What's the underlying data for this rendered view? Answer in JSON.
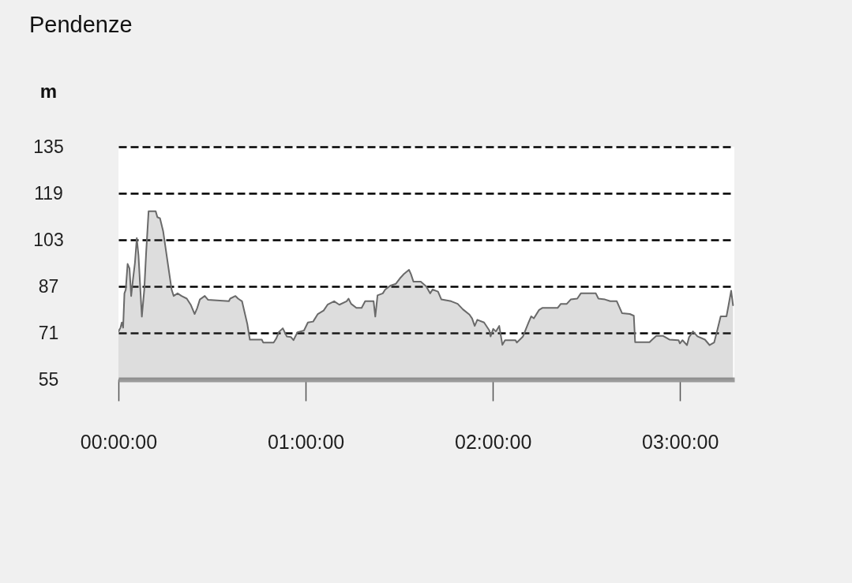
{
  "chart_data": {
    "type": "area",
    "title": "Pendenze",
    "ylabel": "m",
    "color": "#6a6a6a",
    "x": [
      0,
      0.011,
      0.018,
      0.025,
      0.032,
      0.039,
      0.049,
      0.059,
      0.068,
      0.078,
      0.088,
      0.098,
      0.107,
      0.125,
      0.138,
      0.148,
      0.161,
      0.199,
      0.208,
      0.222,
      0.239,
      0.278,
      0.284,
      0.295,
      0.316,
      0.337,
      0.365,
      0.386,
      0.407,
      0.421,
      0.435,
      0.461,
      0.478,
      0.59,
      0.597,
      0.625,
      0.639,
      0.66,
      0.688,
      0.702,
      0.766,
      0.773,
      0.829,
      0.843,
      0.857,
      0.878,
      0.899,
      0.921,
      0.935,
      0.956,
      0.991,
      1.012,
      1.04,
      1.065,
      1.096,
      1.117,
      1.152,
      1.18,
      1.219,
      1.229,
      1.243,
      1.271,
      1.299,
      1.318,
      1.363,
      1.372,
      1.384,
      1.412,
      1.425,
      1.454,
      1.482,
      1.503,
      1.524,
      1.552,
      1.562,
      1.576,
      1.615,
      1.644,
      1.665,
      1.678,
      1.707,
      1.725,
      1.777,
      1.812,
      1.84,
      1.875,
      1.889,
      1.903,
      1.917,
      1.953,
      1.981,
      1.988,
      2.002,
      2.016,
      2.034,
      2.051,
      2.065,
      2.121,
      2.128,
      2.16,
      2.191,
      2.205,
      2.219,
      2.247,
      2.264,
      2.346,
      2.363,
      2.395,
      2.416,
      2.451,
      2.47,
      2.55,
      2.564,
      2.599,
      2.627,
      2.662,
      2.69,
      2.732,
      2.753,
      2.76,
      2.837,
      2.851,
      2.873,
      2.908,
      2.943,
      2.992,
      2.999,
      3.013,
      3.037,
      3.048,
      3.069,
      3.093,
      3.133,
      3.158,
      3.182,
      3.2,
      3.217,
      3.248,
      3.259,
      3.273,
      3.283
    ],
    "values": [
      71.5,
      72.8,
      74.6,
      72.8,
      84.6,
      85.9,
      94.7,
      93.2,
      83.7,
      89.6,
      95.0,
      103.6,
      97.7,
      76.6,
      85.9,
      98.6,
      112.8,
      112.8,
      110.8,
      110.4,
      105.9,
      88.6,
      85.9,
      83.7,
      84.6,
      83.7,
      82.8,
      80.7,
      77.5,
      79.6,
      82.5,
      83.7,
      82.4,
      81.9,
      82.8,
      83.7,
      82.8,
      81.9,
      74.2,
      68.7,
      68.7,
      67.7,
      67.7,
      69.1,
      71.3,
      72.6,
      69.8,
      69.6,
      68.5,
      71.2,
      71.8,
      74.6,
      74.9,
      77.5,
      78.7,
      80.7,
      81.9,
      80.7,
      81.9,
      82.8,
      81.0,
      79.6,
      79.6,
      81.9,
      81.9,
      76.6,
      83.9,
      84.6,
      85.9,
      87.3,
      87.9,
      89.7,
      91.2,
      92.7,
      91.3,
      88.6,
      88.6,
      87.0,
      84.6,
      85.9,
      85.2,
      82.5,
      81.9,
      81.0,
      79.1,
      77.3,
      76.0,
      73.4,
      75.5,
      74.6,
      71.9,
      69.8,
      72.4,
      71.5,
      73.4,
      66.9,
      68.5,
      68.5,
      67.7,
      69.7,
      74.6,
      76.7,
      76.0,
      78.9,
      79.6,
      79.6,
      81.0,
      81.0,
      82.5,
      82.8,
      84.6,
      84.6,
      82.8,
      82.5,
      81.9,
      81.9,
      77.8,
      77.5,
      76.9,
      67.8,
      67.8,
      68.7,
      70.0,
      70.0,
      68.7,
      68.5,
      67.4,
      68.5,
      66.8,
      69.5,
      71.5,
      69.8,
      68.7,
      66.8,
      67.7,
      72.2,
      76.7,
      76.7,
      80.5,
      85.5,
      80.5
    ],
    "xlim": [
      0,
      3.29
    ],
    "xticks": [
      {
        "value": 0,
        "label": "00:00:00"
      },
      {
        "value": 1,
        "label": "01:00:00"
      },
      {
        "value": 2,
        "label": "02:00:00"
      },
      {
        "value": 3,
        "label": "03:00:00"
      }
    ],
    "ylim": [
      55,
      135
    ],
    "yticks": [
      55,
      71,
      87,
      103,
      119,
      135
    ],
    "grid": "y"
  }
}
